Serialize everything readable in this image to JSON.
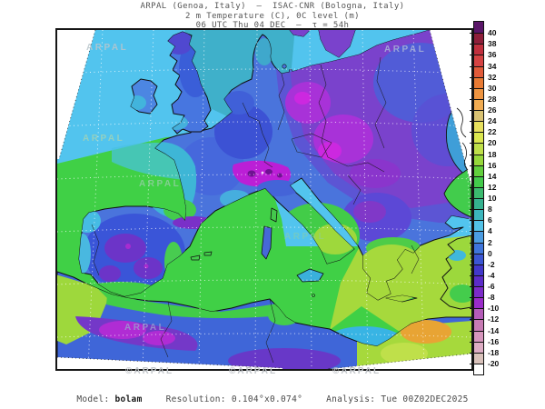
{
  "title": {
    "line1": "ARPAL (Genoa, Italy)  –  ISAC-CNR (Bologna, Italy)",
    "line2": "2 m Temperature (C), 0C level (m)",
    "line3": "06 UTC Thu 04 DEC  –  τ = 54h"
  },
  "footer": {
    "model_label": "Model:",
    "model_value": "bolam",
    "resolution_label": "Resolution:",
    "resolution_value": "0.104°x0.074°",
    "analysis_label": "Analysis:",
    "analysis_value": "Tue 00Z02DEC2025"
  },
  "map": {
    "watermark": "ARPAL",
    "watermark_bottom": "©ARPAL"
  },
  "colorbar": {
    "unit": "C",
    "labels": [
      "40",
      "38",
      "36",
      "34",
      "32",
      "30",
      "28",
      "26",
      "24",
      "22",
      "20",
      "18",
      "16",
      "14",
      "12",
      "10",
      "8",
      "6",
      "4",
      "2",
      "0",
      "-2",
      "-4",
      "-6",
      "-8",
      "-10",
      "-12",
      "-14",
      "-16",
      "-18",
      "-20"
    ],
    "colors": [
      "#5a1668",
      "#8e1f3a",
      "#c0303e",
      "#d44343",
      "#e05a39",
      "#e87a33",
      "#ee9440",
      "#f0ab52",
      "#d9c273",
      "#e7e05e",
      "#dbe74f",
      "#bfe04a",
      "#97d83b",
      "#62cf3d",
      "#43ca4b",
      "#3bba6e",
      "#35b18f",
      "#3cb6bd",
      "#52c2e8",
      "#4b9ce2",
      "#3f75dc",
      "#3b56d4",
      "#4238cb",
      "#5c2cc9",
      "#7c2cc9",
      "#9a2cc9",
      "#b45cb8",
      "#c77bb4",
      "#d696bd",
      "#ddadc4",
      "#d9c2bb",
      "#ffffff"
    ]
  },
  "chart_data": {
    "type": "heatmap",
    "title": "2 m Temperature (C), 0C level (m)",
    "legend_values_c": [
      40,
      38,
      36,
      34,
      32,
      30,
      28,
      26,
      24,
      22,
      20,
      18,
      16,
      14,
      12,
      10,
      8,
      6,
      4,
      2,
      0,
      -2,
      -4,
      -6,
      -8,
      -10,
      -12,
      -14,
      -16,
      -18,
      -20
    ],
    "legend_position": "right",
    "notes": "BOLAM model 2m temperature forecast over Europe/North Africa, 06 UTC Thu 04 DEC, tau=54h"
  }
}
